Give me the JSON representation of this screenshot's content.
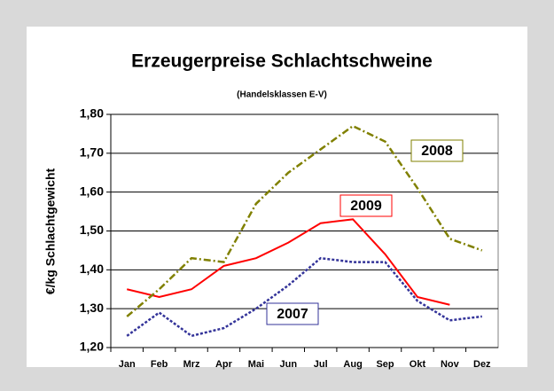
{
  "chart_data": {
    "type": "line",
    "title": "Erzeugerpreise Schlachtschweine",
    "subtitle": "(Handelsklassen E-V)",
    "y_label": "€/kg Schlachtgewicht",
    "categories": [
      "Jan",
      "Feb",
      "Mrz",
      "Apr",
      "Mai",
      "Jun",
      "Jul",
      "Aug",
      "Sep",
      "Okt",
      "Nov",
      "Dez"
    ],
    "series": [
      {
        "name": "2009",
        "color": "#ff0000",
        "style": "solid",
        "values": [
          1.35,
          1.33,
          1.35,
          1.41,
          1.43,
          1.47,
          1.52,
          1.53,
          1.44,
          1.33,
          1.31,
          null
        ]
      },
      {
        "name": "2008",
        "color": "#808000",
        "style": "dashdot",
        "values": [
          1.28,
          1.35,
          1.43,
          1.42,
          1.57,
          1.65,
          1.71,
          1.77,
          1.73,
          1.61,
          1.48,
          1.45
        ]
      },
      {
        "name": "2007",
        "color": "#333399",
        "style": "dotted",
        "values": [
          1.23,
          1.29,
          1.23,
          1.25,
          1.3,
          1.36,
          1.43,
          1.42,
          1.42,
          1.32,
          1.27,
          1.28
        ]
      }
    ],
    "ylim": [
      1.2,
      1.8
    ],
    "yticks": [
      {
        "value": 1.2,
        "label": "1,20"
      },
      {
        "value": 1.3,
        "label": "1,30"
      },
      {
        "value": 1.4,
        "label": "1,40"
      },
      {
        "value": 1.5,
        "label": "1,50"
      },
      {
        "value": 1.6,
        "label": "1,60"
      },
      {
        "value": 1.7,
        "label": "1,70"
      },
      {
        "value": 1.8,
        "label": "1,80"
      }
    ],
    "grid": true
  }
}
